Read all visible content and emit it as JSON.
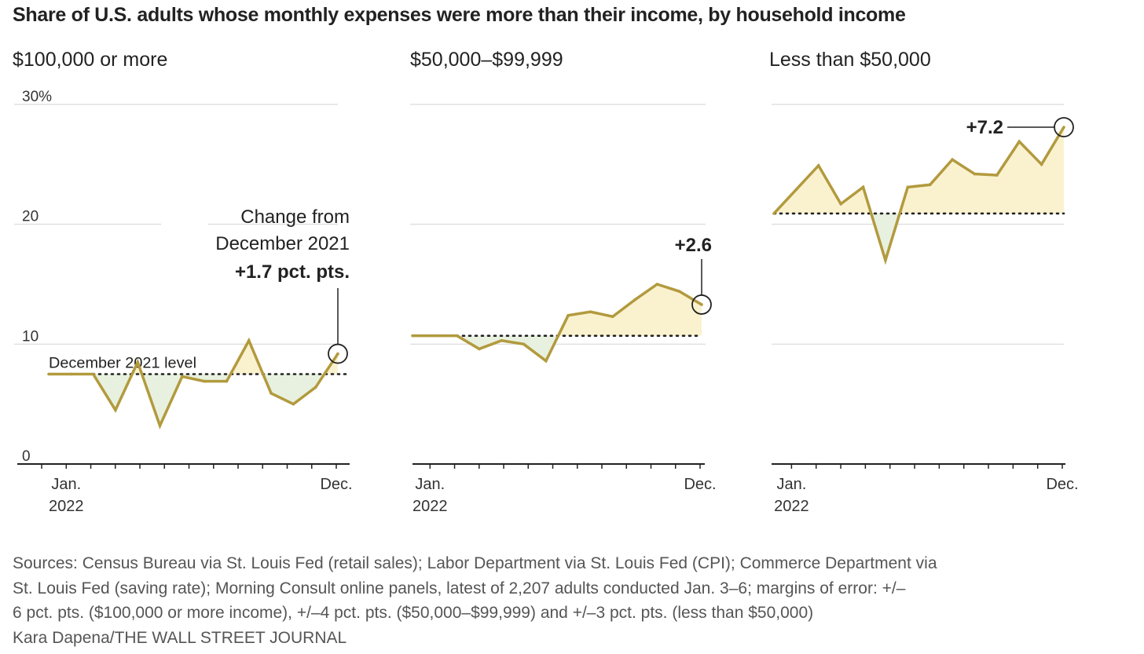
{
  "title": "Share of U.S. adults whose monthly expenses were more than their income, by household income",
  "footer": {
    "source_lines": [
      "Sources: Census Bureau via St. Louis Fed (retail sales); Labor Department via St. Louis Fed (CPI); Commerce Department  via",
      "St. Louis Fed (saving rate); Morning Consult online panels, latest of 2,207 adults conducted Jan. 3–6; margins of error: +/–",
      "6 pct. pts. ($100,000 or more income), +/–4 pct. pts. ($50,000–$99,999) and +/–3 pct. pts. (less than $50,000)"
    ],
    "credit": "Kara Dapena/THE WALL STREET JOURNAL"
  },
  "colors": {
    "line": "#b29a3e",
    "fill_above": "#faf2cf",
    "fill_below": "#e8f1df",
    "grid": "#e0e0e0",
    "axis": "#222222",
    "text": "#222222",
    "footer_text": "#555555"
  },
  "chart_data": [
    {
      "type": "line",
      "title": "$100,000 or more",
      "x_tick_labels": {
        "start": [
          "Jan.",
          "2022"
        ],
        "end": [
          "Dec."
        ]
      },
      "y_tick_labels": [
        "0",
        "10",
        "20",
        "30%"
      ],
      "yticks": [
        0,
        10,
        20,
        30
      ],
      "ylim": [
        0,
        30
      ],
      "grid": true,
      "reference_label": "December 2021 level",
      "reference_value": 7.5,
      "annotation_lines": [
        "Change from",
        "December 2021"
      ],
      "annotation_value": "+1.7 pct. pts.",
      "series": [
        {
          "values": [
            7.5,
            7.5,
            7.5,
            4.5,
            8.5,
            3.2,
            7.3,
            6.9,
            6.9,
            10.3,
            5.9,
            5.0,
            6.4,
            9.2
          ]
        }
      ]
    },
    {
      "type": "line",
      "title": "$50,000–$99,999",
      "x_tick_labels": {
        "start": [
          "Jan.",
          "2022"
        ],
        "end": [
          "Dec."
        ]
      },
      "ylim": [
        0,
        30
      ],
      "grid": true,
      "reference_value": 10.7,
      "annotation_value": "+2.6",
      "series": [
        {
          "values": [
            10.7,
            10.7,
            10.7,
            9.6,
            10.3,
            10.0,
            8.6,
            12.4,
            12.7,
            12.3,
            13.7,
            15.0,
            14.4,
            13.3
          ]
        }
      ]
    },
    {
      "type": "line",
      "title": "Less than $50,000",
      "x_tick_labels": {
        "start": [
          "Jan.",
          "2022"
        ],
        "end": [
          "Dec."
        ]
      },
      "ylim": [
        0,
        30
      ],
      "grid": true,
      "reference_value": 20.9,
      "annotation_value": "+7.2",
      "series": [
        {
          "values": [
            20.9,
            22.9,
            24.9,
            21.7,
            23.1,
            17.0,
            23.1,
            23.3,
            25.4,
            24.2,
            24.1,
            26.9,
            25.0,
            28.1
          ]
        }
      ]
    }
  ]
}
